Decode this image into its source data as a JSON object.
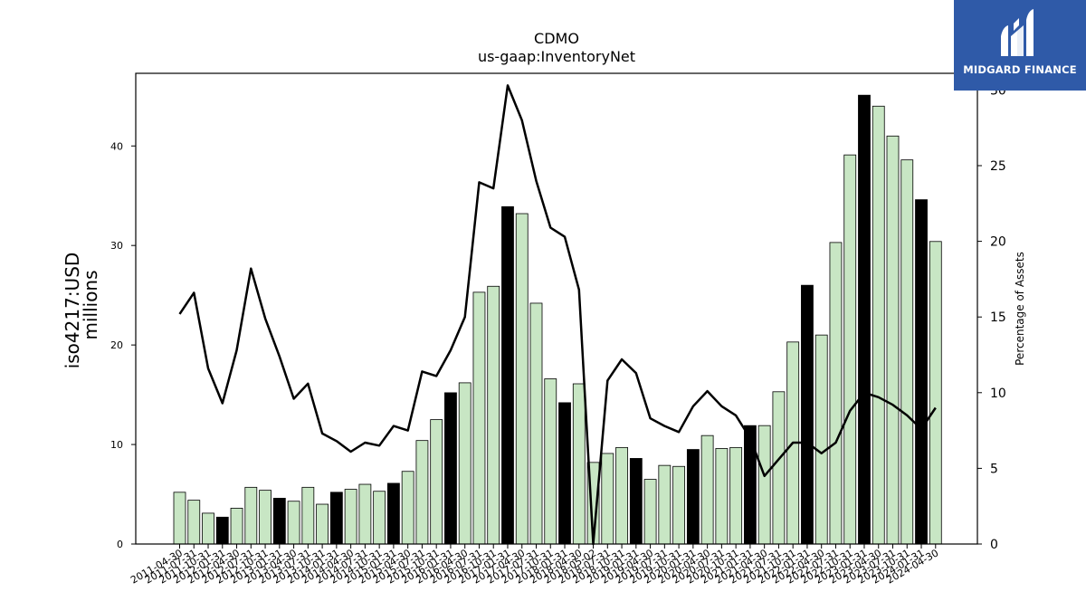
{
  "chart_data": {
    "type": "bar+line",
    "title": "CDMO",
    "subtitle": "us-gaap:InventoryNet",
    "ylabel_left": [
      "iso4217:USD",
      "millions"
    ],
    "ylabel_right": "Percentage of Assets",
    "ylim_left": [
      0,
      47.3
    ],
    "ylim_right": [
      0,
      31.1
    ],
    "yticks_left": [
      0,
      10,
      20,
      30,
      40
    ],
    "yticks_right": [
      0,
      5,
      10,
      15,
      20,
      25,
      30
    ],
    "colors": {
      "bar_default": "#c8e6c4",
      "bar_highlight": "#000000",
      "line": "#000000"
    },
    "categories": [
      "2011-04-30",
      "2011-07-31",
      "2011-10-31",
      "2012-01-31",
      "2012-04-30",
      "2012-07-31",
      "2012-10-31",
      "2013-01-31",
      "2013-04-30",
      "2013-07-31",
      "2013-10-31",
      "2014-01-31",
      "2014-04-30",
      "2014-07-31",
      "2014-10-31",
      "2015-01-31",
      "2015-04-30",
      "2015-07-31",
      "2015-10-31",
      "2016-01-31",
      "2016-04-30",
      "2016-07-31",
      "2016-10-31",
      "2017-01-31",
      "2017-04-30",
      "2017-07-31",
      "2017-10-31",
      "2018-01-31",
      "2018-04-30",
      "2018-05-02",
      "2018-07-31",
      "2018-10-31",
      "2019-01-31",
      "2019-04-30",
      "2019-07-31",
      "2019-10-31",
      "2020-01-31",
      "2020-04-30",
      "2020-07-31",
      "2020-10-31",
      "2021-01-31",
      "2021-04-30",
      "2021-07-31",
      "2021-10-31",
      "2022-01-31",
      "2022-04-30",
      "2022-07-31",
      "2022-10-31",
      "2023-01-31",
      "2023-04-30",
      "2023-07-31",
      "2023-10-31",
      "2024-01-31",
      "2024-04-30"
    ],
    "values": [
      5.2,
      4.4,
      3.1,
      2.7,
      3.6,
      5.7,
      5.4,
      4.6,
      4.3,
      5.7,
      4.0,
      5.2,
      5.5,
      6.0,
      5.3,
      6.1,
      7.3,
      10.4,
      12.5,
      15.2,
      16.2,
      25.3,
      25.9,
      33.9,
      33.2,
      24.2,
      16.6,
      14.2,
      16.1,
      8.2,
      9.1,
      9.7,
      8.6,
      6.5,
      7.9,
      7.8,
      9.5,
      10.9,
      9.6,
      9.7,
      11.9,
      11.9,
      15.3,
      20.3,
      26.0,
      21.0,
      30.3,
      39.1,
      45.1,
      44.0,
      41.0,
      38.6,
      34.6,
      30.4
    ],
    "highlight": [
      false,
      false,
      false,
      true,
      false,
      false,
      false,
      true,
      false,
      false,
      false,
      true,
      false,
      false,
      false,
      true,
      false,
      false,
      false,
      true,
      false,
      false,
      false,
      true,
      false,
      false,
      false,
      true,
      false,
      false,
      false,
      false,
      true,
      false,
      false,
      false,
      true,
      false,
      false,
      false,
      true,
      false,
      false,
      false,
      true,
      false,
      false,
      false,
      true,
      false,
      false,
      false,
      true,
      false
    ],
    "line_values": [
      15.2,
      16.6,
      11.6,
      9.3,
      12.8,
      18.2,
      14.9,
      12.4,
      9.6,
      10.6,
      7.3,
      6.8,
      6.1,
      6.7,
      6.5,
      7.8,
      7.5,
      11.4,
      11.1,
      12.8,
      15.0,
      23.9,
      23.5,
      30.3,
      28.0,
      24.0,
      20.9,
      20.3,
      16.8,
      0.0,
      10.8,
      12.2,
      11.3,
      8.3,
      7.8,
      7.4,
      9.1,
      10.1,
      9.1,
      8.5,
      7.0,
      4.5,
      5.6,
      6.7,
      6.7,
      6.0,
      6.7,
      8.8,
      10.0,
      9.7,
      9.2,
      8.5,
      7.6,
      9.0
    ]
  },
  "logo": {
    "text": "MIDGARD FINANCE"
  }
}
